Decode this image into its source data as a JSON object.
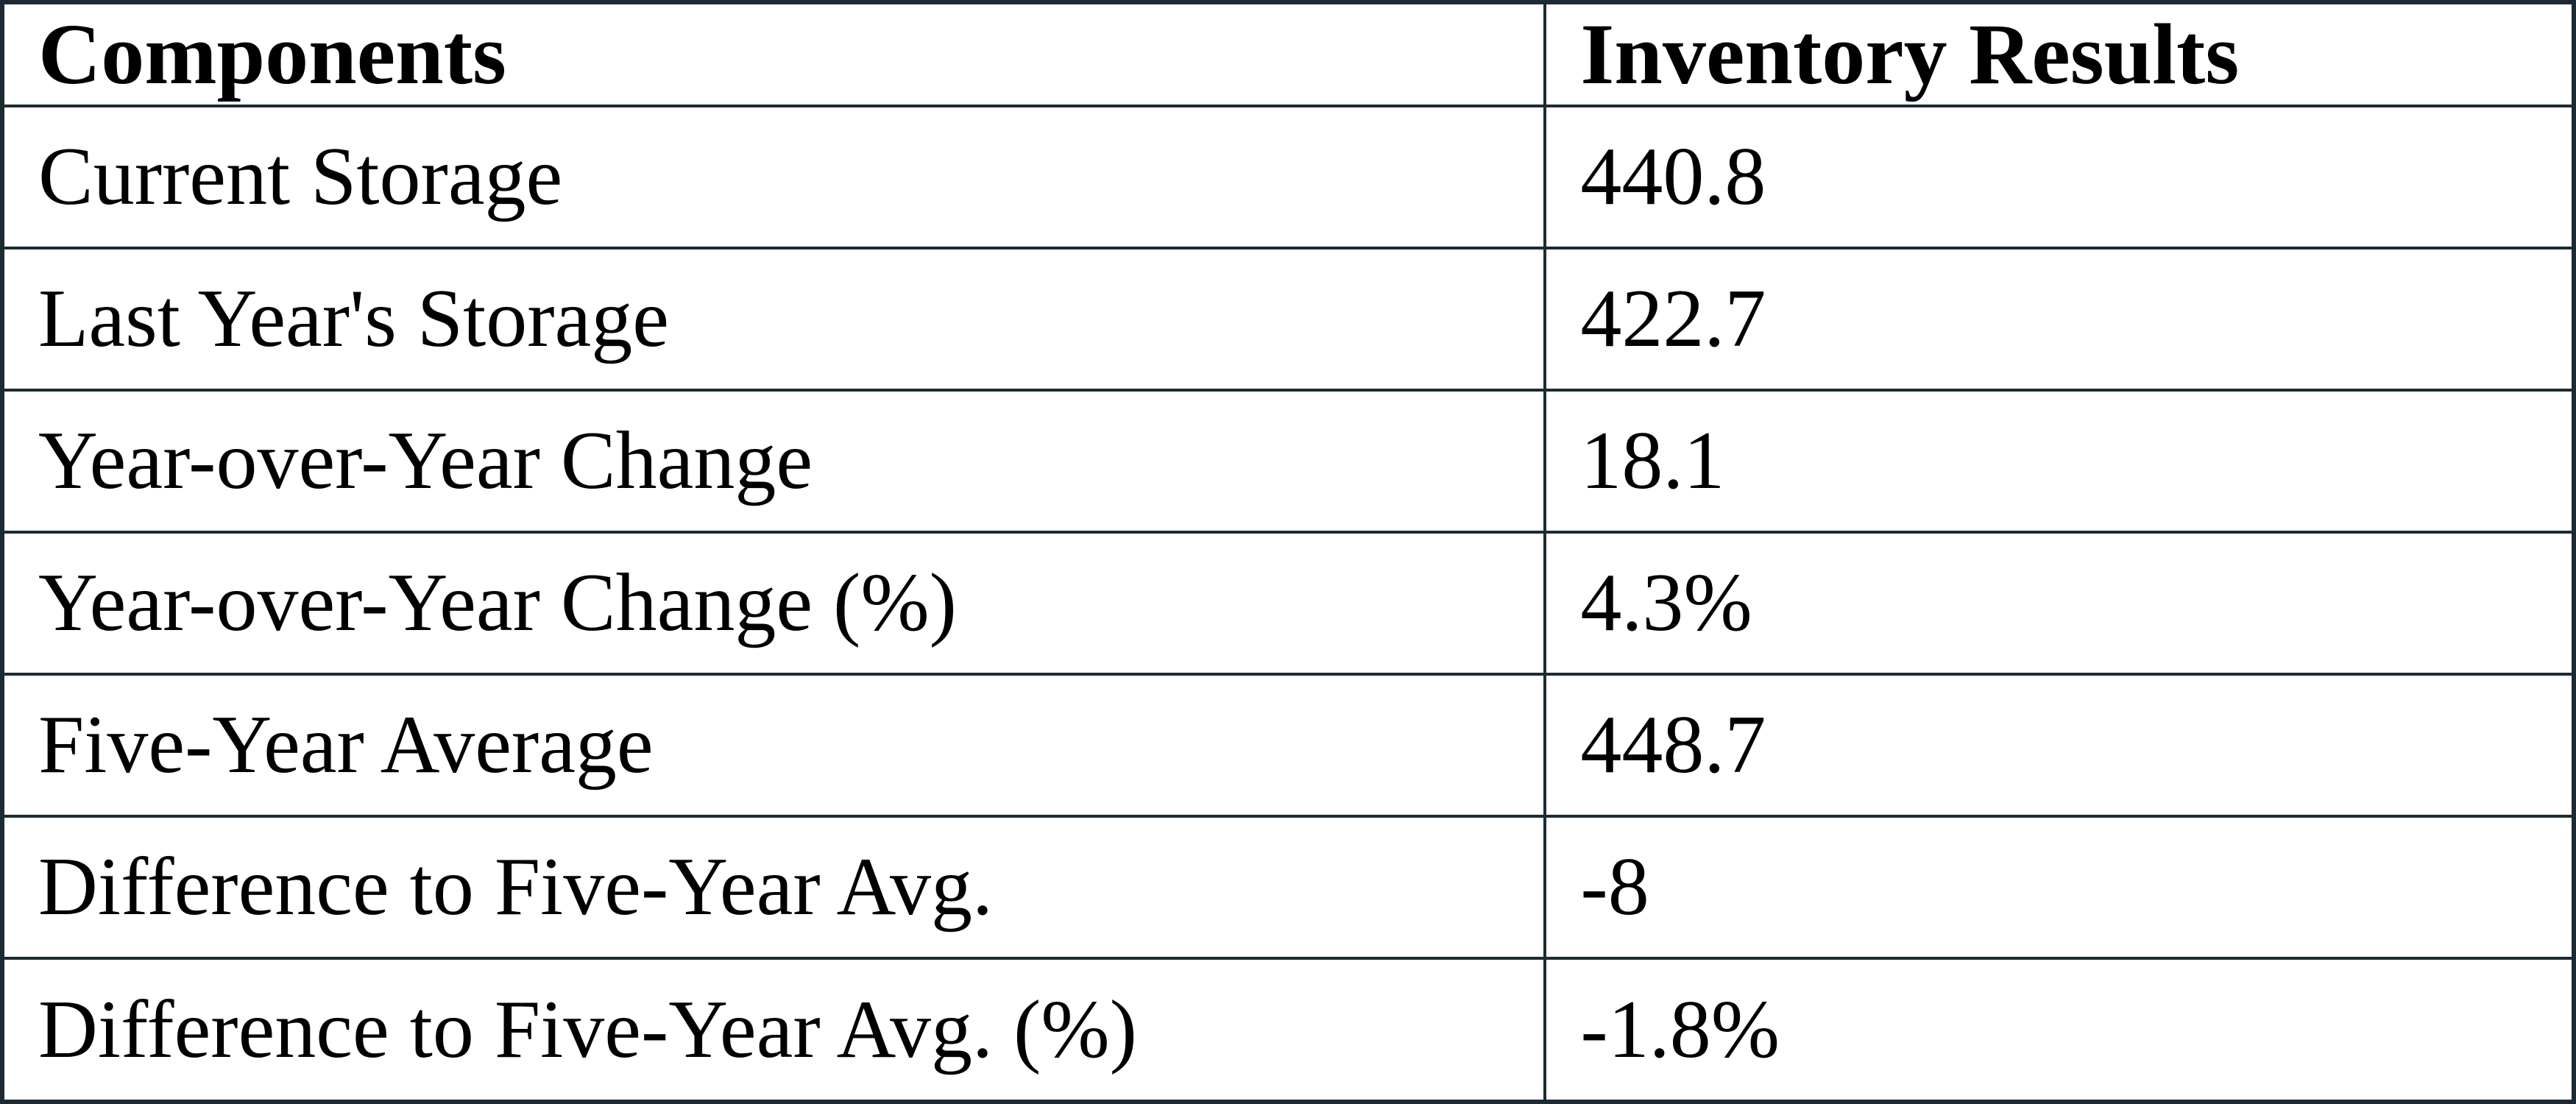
{
  "chart_data": {
    "type": "table",
    "title": "",
    "columns": [
      "Components",
      "Inventory Results"
    ],
    "rows": [
      [
        "Current Storage",
        "440.8"
      ],
      [
        "Last Year's Storage",
        "422.7"
      ],
      [
        "Year-over-Year Change",
        "18.1"
      ],
      [
        "Year-over-Year Change (%)",
        "4.3%"
      ],
      [
        "Five-Year Average",
        "448.7"
      ],
      [
        "Difference to Five-Year Avg.",
        "-8"
      ],
      [
        "Difference to Five-Year Avg. (%)",
        "-1.8%"
      ]
    ],
    "numeric_values": {
      "current_storage": 440.8,
      "last_year_storage": 422.7,
      "yoy_change": 18.1,
      "yoy_change_pct": 4.3,
      "five_year_average": 448.7,
      "difference_to_five_year_avg": -8,
      "difference_to_five_year_avg_pct": -1.8
    },
    "layout": {
      "grid": true,
      "header_bold": true,
      "border_color": "#1c2b33",
      "background": "#ffffff",
      "text_color": "#000000"
    }
  },
  "table": {
    "header": {
      "component": "Components",
      "result": "Inventory Results"
    },
    "rows": [
      {
        "component": "Current Storage",
        "result": "440.8"
      },
      {
        "component": "Last Year's Storage",
        "result": "422.7"
      },
      {
        "component": "Year-over-Year Change",
        "result": "18.1"
      },
      {
        "component": "Year-over-Year Change (%)",
        "result": "4.3%"
      },
      {
        "component": "Five-Year Average",
        "result": "448.7"
      },
      {
        "component": "Difference to Five-Year Avg.",
        "result": "-8"
      },
      {
        "component": "Difference to Five-Year Avg. (%)",
        "result": "-1.8%"
      }
    ]
  }
}
